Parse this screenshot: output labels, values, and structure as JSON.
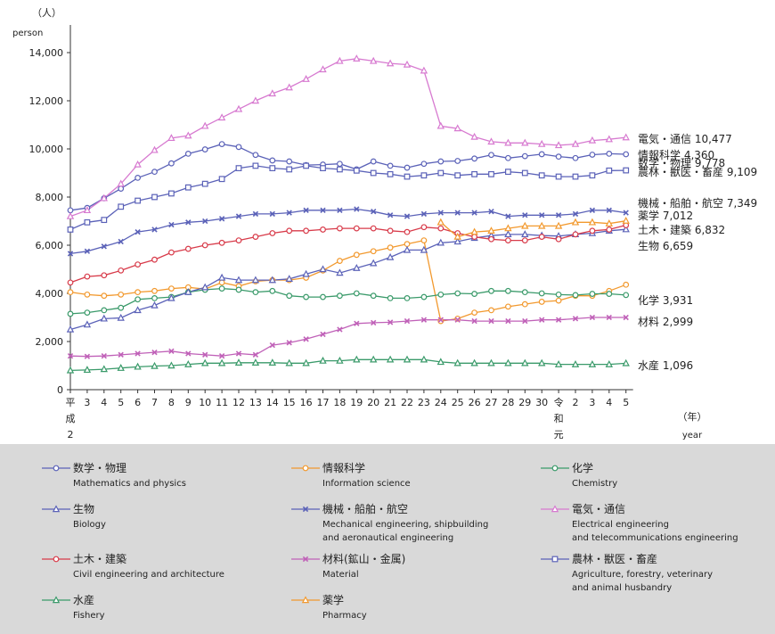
{
  "chart_data": {
    "type": "line",
    "y_unit_jp": "（人）",
    "y_unit_en": "person",
    "x_unit_jp": "（年）",
    "x_unit_en": "year",
    "ylim": [
      0,
      14500
    ],
    "yticks": [
      "0",
      "2,000",
      "4,000",
      "6,000",
      "8,000",
      "10,000",
      "12,000",
      "14,000"
    ],
    "ytick_values": [
      0,
      2000,
      4000,
      6000,
      8000,
      10000,
      12000,
      14000
    ],
    "x_labels": [
      "平\n成\n2",
      "3",
      "4",
      "5",
      "6",
      "7",
      "8",
      "9",
      "10",
      "11",
      "12",
      "13",
      "14",
      "15",
      "16",
      "17",
      "18",
      "19",
      "20",
      "21",
      "22",
      "23",
      "24",
      "25",
      "26",
      "27",
      "28",
      "29",
      "30",
      "令\n和\n元",
      "2",
      "3",
      "4",
      "5"
    ],
    "x_years": [
      1990,
      1991,
      1992,
      1993,
      1994,
      1995,
      1996,
      1997,
      1998,
      1999,
      2000,
      2001,
      2002,
      2003,
      2004,
      2005,
      2006,
      2007,
      2008,
      2009,
      2010,
      2011,
      2012,
      2013,
      2014,
      2015,
      2016,
      2017,
      2018,
      2019,
      2020,
      2021,
      2022,
      2023
    ],
    "series": [
      {
        "name": "数学・物理",
        "name_en": "Mathematics and physics",
        "color": "#5b62b8",
        "marker": "circle",
        "end_label": "数学・物理 9,778",
        "values": [
          7450,
          7550,
          7950,
          8350,
          8800,
          9050,
          9400,
          9800,
          9980,
          10200,
          10080,
          9750,
          9520,
          9480,
          9330,
          9350,
          9380,
          9150,
          9480,
          9300,
          9220,
          9380,
          9480,
          9500,
          9600,
          9750,
          9620,
          9700,
          9780,
          9680,
          9620,
          9760,
          9800,
          9778
        ]
      },
      {
        "name": "情報科学",
        "name_en": "Information science",
        "color": "#f2992e",
        "marker": "circle",
        "end_label": "情報科学 4,360",
        "values": [
          4050,
          3950,
          3900,
          3950,
          4050,
          4100,
          4200,
          4250,
          4180,
          4450,
          4300,
          4500,
          4550,
          4550,
          4650,
          4950,
          5350,
          5600,
          5750,
          5900,
          6050,
          6200,
          2850,
          2950,
          3200,
          3300,
          3450,
          3550,
          3650,
          3700,
          3900,
          3900,
          4100,
          4360
        ]
      },
      {
        "name": "化学",
        "name_en": "Chemistry",
        "color": "#3a9a6a",
        "marker": "circle",
        "end_label": "化学 3,931",
        "values": [
          3150,
          3200,
          3300,
          3400,
          3750,
          3800,
          3850,
          4050,
          4150,
          4200,
          4150,
          4050,
          4100,
          3900,
          3850,
          3850,
          3900,
          4000,
          3900,
          3800,
          3800,
          3850,
          3950,
          4000,
          3980,
          4100,
          4100,
          4050,
          4000,
          3950,
          3930,
          3980,
          3980,
          3931
        ]
      },
      {
        "name": "生物",
        "name_en": "Biology",
        "color": "#5b62b8",
        "marker": "triangle",
        "end_label": "生物 6,659",
        "values": [
          2500,
          2700,
          2950,
          2980,
          3300,
          3500,
          3800,
          4050,
          4250,
          4650,
          4550,
          4550,
          4550,
          4600,
          4800,
          5000,
          4850,
          5050,
          5250,
          5500,
          5800,
          5800,
          6100,
          6150,
          6300,
          6400,
          6450,
          6450,
          6400,
          6380,
          6450,
          6500,
          6600,
          6659
        ]
      },
      {
        "name": "機械・船舶・航空",
        "name_en": "Mechanical engineering, shipbuilding\nand aeronautical engineering",
        "color": "#5b62b8",
        "marker": "x",
        "end_label": "機械・船舶・航空 7,349",
        "values": [
          5650,
          5750,
          5950,
          6150,
          6550,
          6650,
          6850,
          6950,
          7000,
          7100,
          7200,
          7300,
          7300,
          7350,
          7450,
          7450,
          7450,
          7500,
          7400,
          7250,
          7200,
          7300,
          7350,
          7350,
          7350,
          7400,
          7200,
          7250,
          7250,
          7250,
          7300,
          7450,
          7450,
          7349
        ]
      },
      {
        "name": "電気・通信",
        "name_en": "Electrical engineering\nand telecommunications engineering",
        "color": "#d77ad0",
        "marker": "triangle",
        "end_label": "電気・通信 10,477",
        "values": [
          7200,
          7450,
          7950,
          8550,
          9350,
          9950,
          10450,
          10550,
          10950,
          11300,
          11650,
          12000,
          12300,
          12550,
          12900,
          13300,
          13650,
          13750,
          13650,
          13550,
          13500,
          13250,
          10950,
          10850,
          10500,
          10300,
          10250,
          10250,
          10200,
          10150,
          10200,
          10350,
          10400,
          10477
        ]
      },
      {
        "name": "土木・建築",
        "name_en": "Civil engineering and architecture",
        "color": "#d83b4a",
        "marker": "circle",
        "end_label": "土木・建築 6,832",
        "values": [
          4450,
          4700,
          4750,
          4950,
          5200,
          5400,
          5700,
          5850,
          6000,
          6100,
          6200,
          6350,
          6500,
          6600,
          6600,
          6650,
          6700,
          6700,
          6700,
          6600,
          6550,
          6750,
          6700,
          6500,
          6350,
          6250,
          6200,
          6200,
          6350,
          6250,
          6450,
          6600,
          6650,
          6832
        ]
      },
      {
        "name": "材料(鉱山・金属)",
        "name_en": "Material",
        "color": "#c061b8",
        "marker": "x",
        "end_label": "材料 2,999",
        "values": [
          1400,
          1380,
          1400,
          1450,
          1500,
          1550,
          1600,
          1500,
          1450,
          1400,
          1500,
          1450,
          1850,
          1950,
          2100,
          2300,
          2500,
          2750,
          2780,
          2800,
          2850,
          2900,
          2900,
          2900,
          2850,
          2850,
          2850,
          2850,
          2900,
          2900,
          2950,
          3000,
          3000,
          2999
        ]
      },
      {
        "name": "農林・獣医・畜産",
        "name_en": "Agriculture, forestry, veterinary\nand animal husbandry",
        "color": "#5b62b8",
        "marker": "square",
        "end_label": "農林・獣医・畜産 9,109",
        "values": [
          6650,
          6950,
          7050,
          7600,
          7850,
          8000,
          8150,
          8400,
          8550,
          8750,
          9200,
          9300,
          9200,
          9150,
          9300,
          9200,
          9150,
          9100,
          9000,
          8950,
          8850,
          8900,
          9000,
          8900,
          8950,
          8950,
          9050,
          9000,
          8900,
          8850,
          8850,
          8900,
          9100,
          9109
        ]
      },
      {
        "name": "水産",
        "name_en": "Fishery",
        "color": "#3a9a6a",
        "marker": "triangle",
        "end_label": "水産 1,096",
        "values": [
          800,
          820,
          850,
          900,
          950,
          980,
          1000,
          1050,
          1100,
          1100,
          1120,
          1120,
          1120,
          1100,
          1100,
          1200,
          1200,
          1250,
          1250,
          1250,
          1250,
          1250,
          1150,
          1100,
          1100,
          1100,
          1100,
          1100,
          1100,
          1050,
          1050,
          1050,
          1050,
          1096
        ]
      },
      {
        "name": "薬学",
        "name_en": "Pharmacy",
        "color": "#f2992e",
        "marker": "triangle",
        "end_label": "薬学 7,012",
        "values": [
          null,
          null,
          null,
          null,
          null,
          null,
          null,
          null,
          null,
          null,
          null,
          null,
          null,
          null,
          null,
          null,
          null,
          null,
          null,
          null,
          null,
          null,
          6950,
          6350,
          6550,
          6600,
          6700,
          6800,
          6800,
          6800,
          6950,
          6950,
          6900,
          7012
        ]
      }
    ]
  },
  "legend_order": [
    0,
    1,
    2,
    3,
    4,
    5,
    6,
    7,
    8,
    9,
    10
  ]
}
